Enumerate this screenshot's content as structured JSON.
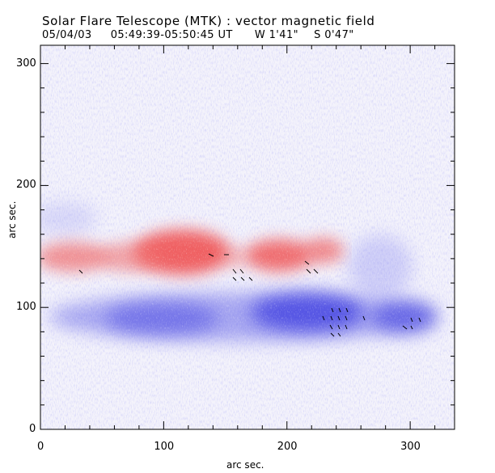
{
  "header": {
    "title": "Solar Flare Telescope (MTK) : vector magnetic field",
    "date": "05/04/03",
    "time_range": "05:49:39-05:50:45 UT",
    "lon": "W 1'41\"",
    "lat": "S 0'47\""
  },
  "axes": {
    "xlabel": "arc sec.",
    "ylabel": "arc sec.",
    "xlim": [
      0,
      336
    ],
    "ylim": [
      0,
      315
    ],
    "xticks": [
      0,
      100,
      200,
      300
    ],
    "yticks": [
      0,
      100,
      200,
      300
    ]
  },
  "colors": {
    "positive_polarity": "#f05050",
    "negative_polarity": "#4a4ae0",
    "vectors": "#000000"
  }
}
